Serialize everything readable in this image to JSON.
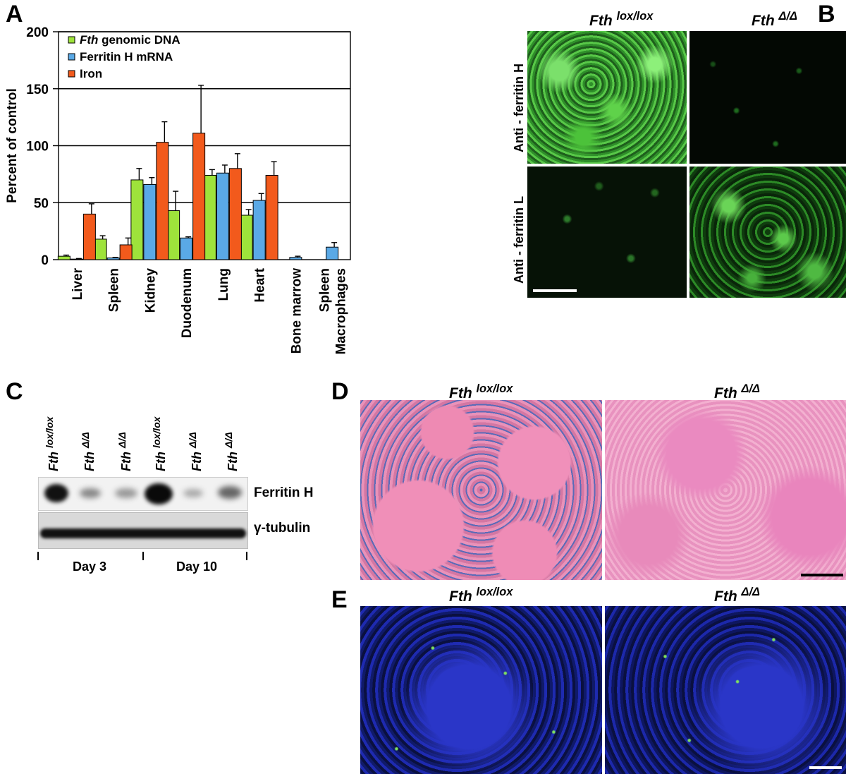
{
  "figure": {
    "panel_labels": [
      "A",
      "B",
      "C",
      "D",
      "E"
    ],
    "genotype": {
      "fth": "Fth",
      "flox_sup": "lox/lox",
      "del_sup": "Δ/Δ"
    }
  },
  "chart_data": {
    "type": "bar",
    "categories": [
      "Liver",
      "Spleen",
      "Kidney",
      "Duodenum",
      "Lung",
      "Heart",
      "Bone marrow",
      "Spleen Macrophages"
    ],
    "category_lines": [
      [
        "Liver"
      ],
      [
        "Spleen"
      ],
      [
        "Kidney"
      ],
      [
        "Duodenum"
      ],
      [
        "Lung"
      ],
      [
        "Heart"
      ],
      [
        "Bone marrow"
      ],
      [
        "Spleen",
        "Macrophages"
      ]
    ],
    "series": [
      {
        "name": "Fth genomic DNA",
        "name_italic": "Fth",
        "name_rest": " genomic DNA",
        "color": "#9ee33b",
        "values": [
          3,
          18,
          70,
          43,
          74,
          39,
          null,
          null
        ],
        "errors": [
          1,
          3,
          10,
          17,
          5,
          5,
          null,
          null
        ]
      },
      {
        "name": "Ferritin H mRNA",
        "color": "#5aa9e6",
        "values": [
          0.5,
          1.5,
          66,
          19,
          76,
          52,
          2,
          11
        ],
        "errors": [
          0.5,
          0.5,
          6,
          1,
          7,
          6,
          1,
          4
        ]
      },
      {
        "name": "Iron",
        "color": "#f25a1c",
        "values": [
          40,
          13,
          103,
          111,
          80,
          74,
          null,
          null
        ],
        "errors": [
          9,
          6,
          18,
          42,
          13,
          12,
          null,
          null
        ]
      }
    ],
    "ylabel": "Percent of control",
    "ylim": [
      0,
      200
    ],
    "yticks": [
      0,
      50,
      100,
      150,
      200
    ],
    "grid": true,
    "legend_position": "top-left"
  },
  "panel_b": {
    "columns": [
      "Fth lox/lox",
      "Fth Δ/Δ"
    ],
    "rows": [
      "Anti - ferritin H",
      "Anti - ferritin L"
    ]
  },
  "panel_c": {
    "lanes": [
      "lox/lox",
      "Δ/Δ",
      "Δ/Δ",
      "lox/lox",
      "Δ/Δ",
      "Δ/Δ"
    ],
    "bands": [
      "Ferritin H",
      "γ-tubulin"
    ],
    "groups": [
      "Day 3",
      "Day 10"
    ]
  },
  "panel_d": {
    "columns": [
      "Fth lox/lox",
      "Fth Δ/Δ"
    ]
  },
  "panel_e": {
    "columns": [
      "Fth lox/lox",
      "Fth Δ/Δ"
    ]
  }
}
